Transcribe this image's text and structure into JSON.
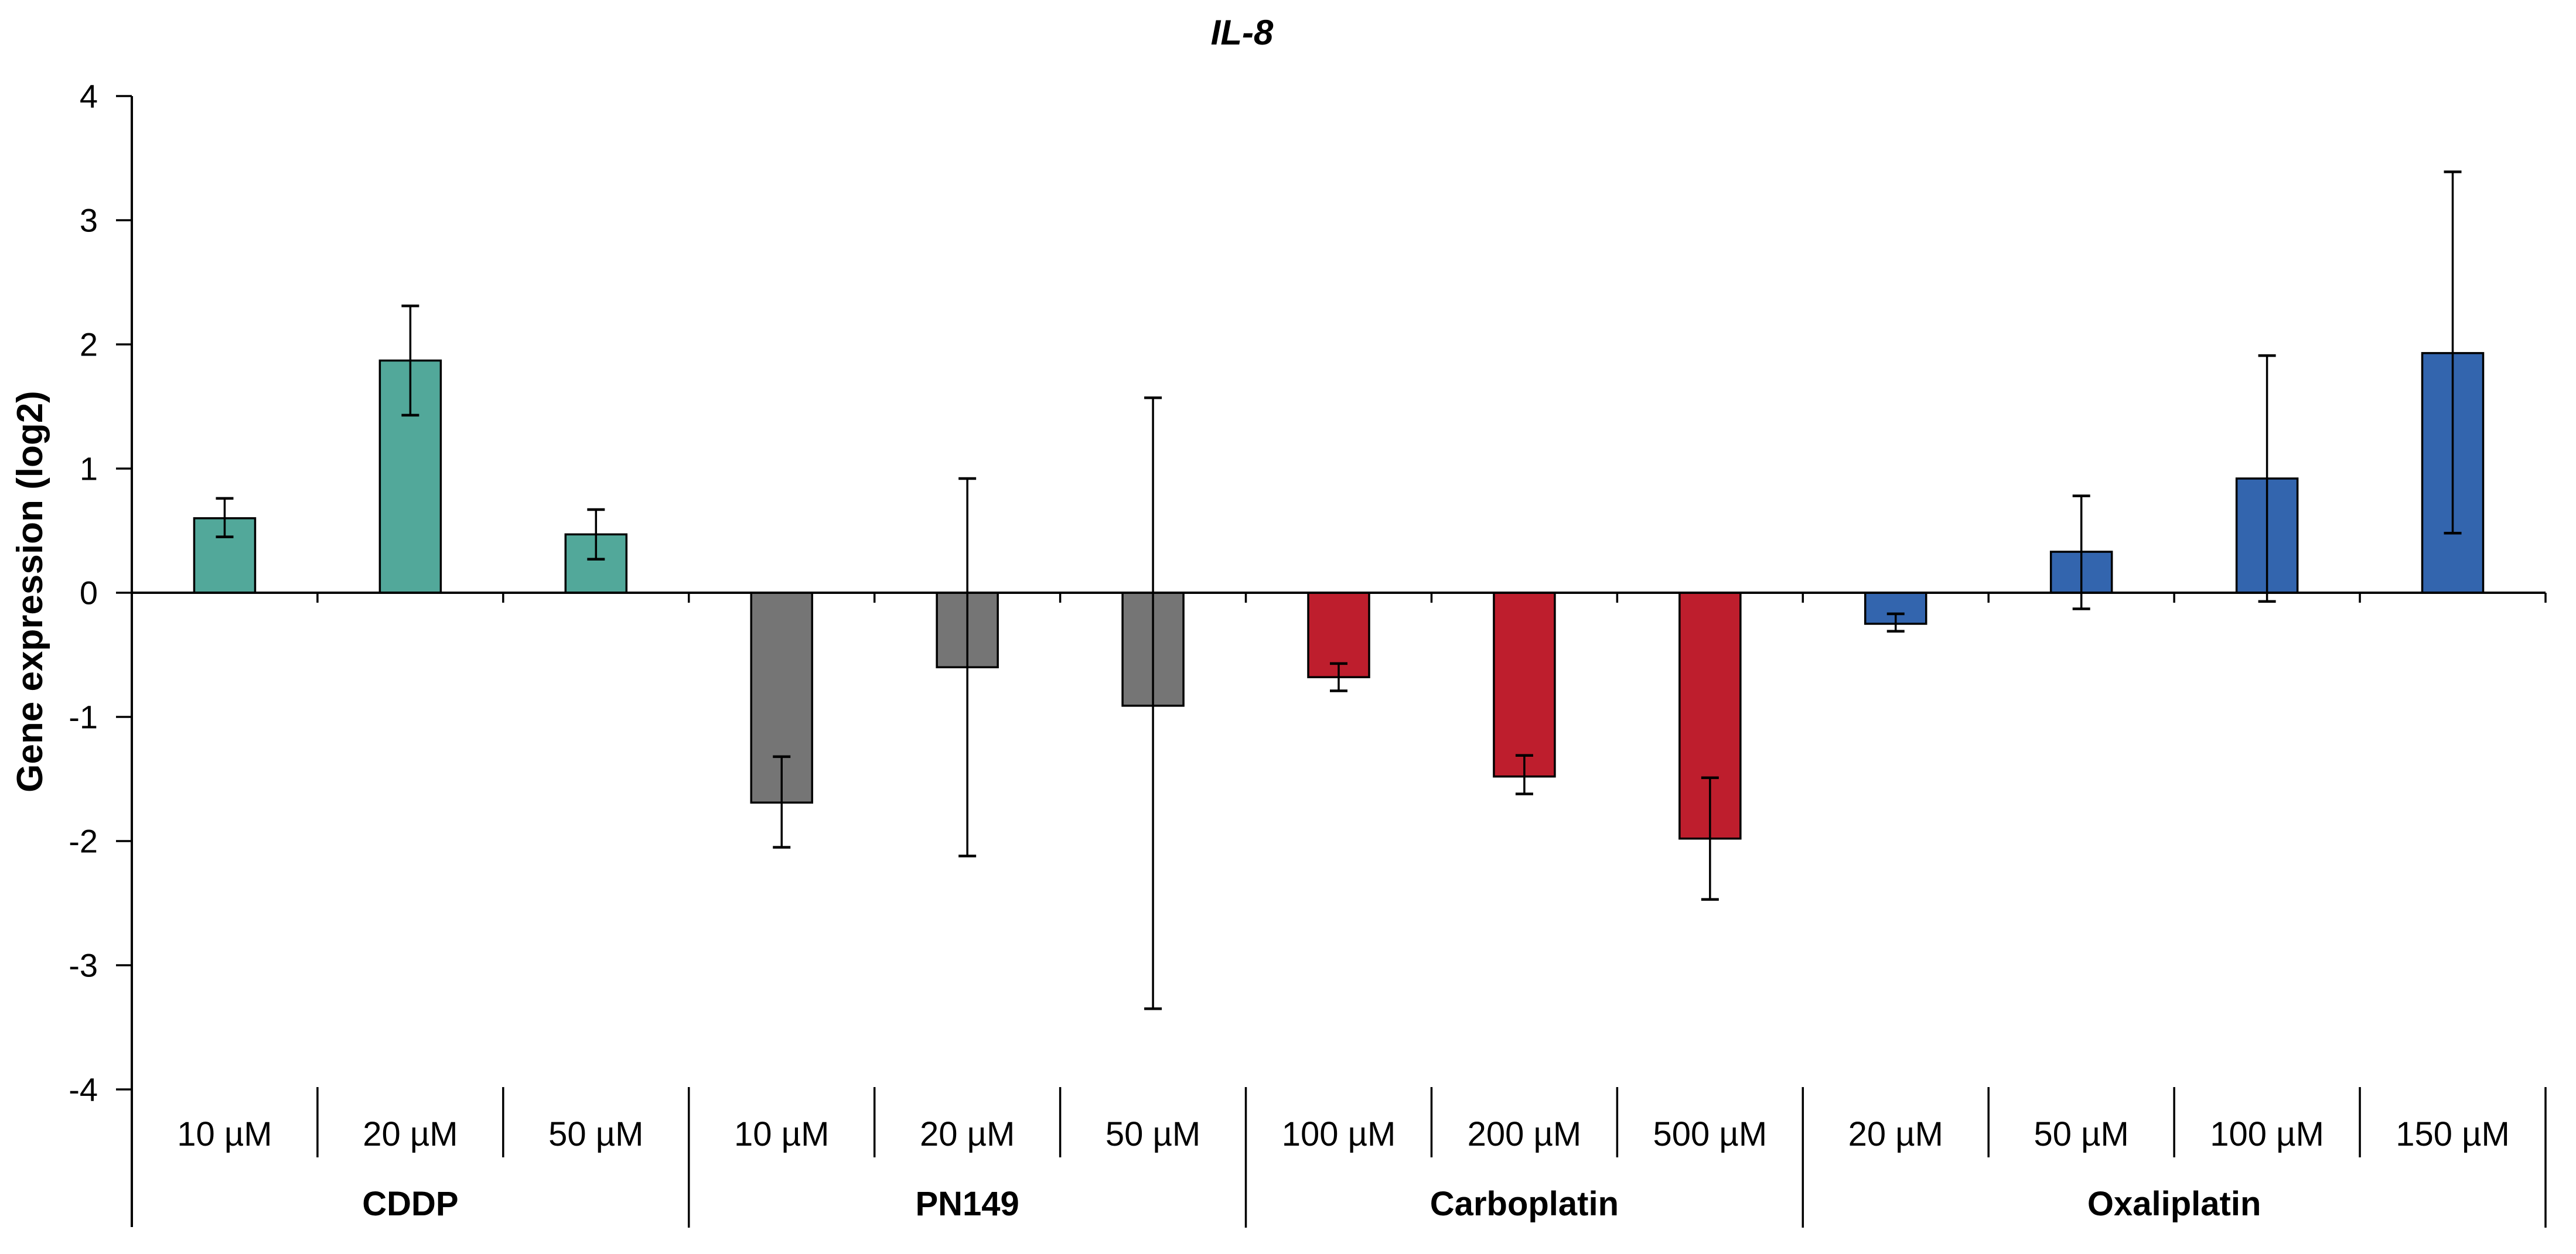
{
  "title": "IL-8",
  "chart_data": {
    "type": "bar",
    "title": "IL-8",
    "xlabel": "",
    "ylabel": "Gene expression (log2)",
    "ylim": [
      -4,
      4
    ],
    "y_ticks": [
      4,
      3,
      2,
      1,
      0,
      -1,
      -2,
      -3,
      -4
    ],
    "grid": false,
    "legend": "none",
    "error_bars": "asymmetric, black caps, values are absolute error-bar endpoints in log2 units",
    "bar_outline_color": "#000000",
    "axis_color": "#000000",
    "background_color": "#ffffff",
    "groups": [
      {
        "name": "CDDP",
        "color": "#52A89A",
        "bars": [
          {
            "label": "10 µM",
            "value": 0.6,
            "err_low": 0.45,
            "err_high": 0.76
          },
          {
            "label": "20 µM",
            "value": 1.87,
            "err_low": 1.43,
            "err_high": 2.31
          },
          {
            "label": "50 µM",
            "value": 0.47,
            "err_low": 0.27,
            "err_high": 0.67
          }
        ]
      },
      {
        "name": "PN149",
        "color": "#757575",
        "bars": [
          {
            "label": "10 µM",
            "value": -1.69,
            "err_low": -2.05,
            "err_high": -1.32
          },
          {
            "label": "20 µM",
            "value": -0.6,
            "err_low": -2.12,
            "err_high": 0.92
          },
          {
            "label": "50 µM",
            "value": -0.91,
            "err_low": -3.35,
            "err_high": 1.57
          }
        ]
      },
      {
        "name": "Carboplatin",
        "color": "#BE1E2D",
        "bars": [
          {
            "label": "100 µM",
            "value": -0.68,
            "err_low": -0.79,
            "err_high": -0.57
          },
          {
            "label": "200 µM",
            "value": -1.48,
            "err_low": -1.62,
            "err_high": -1.31
          },
          {
            "label": "500 µM",
            "value": -1.98,
            "err_low": -2.47,
            "err_high": -1.49
          }
        ]
      },
      {
        "name": "Oxaliplatin",
        "color": "#3365AE",
        "bars": [
          {
            "label": "20 µM",
            "value": -0.25,
            "err_low": -0.31,
            "err_high": -0.17
          },
          {
            "label": "50 µM",
            "value": 0.33,
            "err_low": -0.13,
            "err_high": 0.78
          },
          {
            "label": "100 µM",
            "value": 0.92,
            "err_low": -0.07,
            "err_high": 1.91
          },
          {
            "label": "150 µM",
            "value": 1.93,
            "err_low": 0.48,
            "err_high": 3.39
          }
        ]
      }
    ]
  }
}
